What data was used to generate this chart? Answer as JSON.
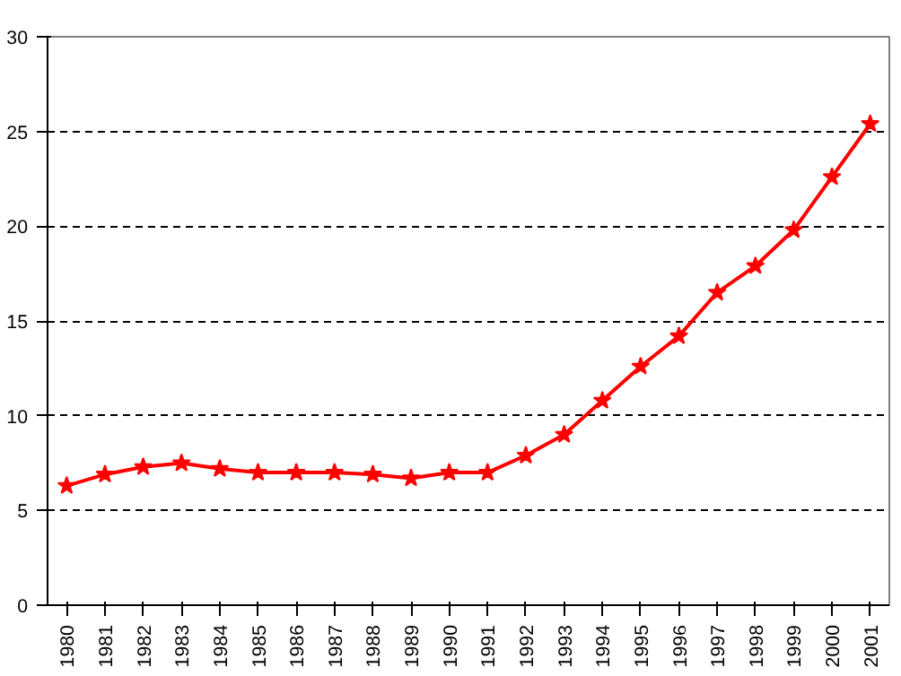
{
  "chart_data": {
    "type": "line",
    "categories": [
      "1980",
      "1981",
      "1982",
      "1983",
      "1984",
      "1985",
      "1986",
      "1987",
      "1988",
      "1989",
      "1990",
      "1991",
      "1992",
      "1993",
      "1994",
      "1995",
      "1996",
      "1997",
      "1998",
      "1999",
      "2000",
      "2001"
    ],
    "series": [
      {
        "color": "#ff0000",
        "values": [
          6.3,
          6.9,
          7.3,
          7.5,
          7.2,
          7.0,
          7.0,
          7.0,
          6.9,
          6.7,
          7.0,
          7.0,
          7.9,
          9.0,
          10.8,
          12.6,
          14.2,
          16.5,
          17.9,
          19.8,
          22.6,
          25.4
        ]
      }
    ],
    "ylim": [
      0,
      30
    ],
    "yticks": [
      0,
      5,
      10,
      15,
      20,
      25,
      30
    ],
    "grid": "y",
    "marker": "star",
    "line_style": "solid"
  }
}
